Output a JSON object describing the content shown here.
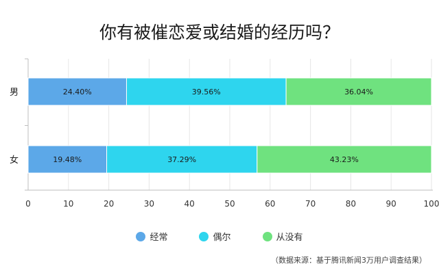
{
  "title": "你有被催恋爱或结婚的经历吗？",
  "source_note": "（数据来源：基于腾讯新闻3万用户调查结果）",
  "colors": {
    "frequent": "#5ca8e8",
    "occasional": "#2ed5ee",
    "never": "#6fe27f"
  },
  "chart_data": {
    "type": "bar",
    "orientation": "horizontal",
    "stacked": true,
    "categories": [
      "男",
      "女"
    ],
    "series": [
      {
        "name": "经常",
        "values": [
          24.4,
          19.48
        ],
        "labels": [
          "24.40%",
          "19.48%"
        ]
      },
      {
        "name": "偶尔",
        "values": [
          39.56,
          37.29
        ],
        "labels": [
          "39.56%",
          "37.29%"
        ]
      },
      {
        "name": "从没有",
        "values": [
          36.04,
          43.23
        ],
        "labels": [
          "36.04%",
          "43.23%"
        ]
      }
    ],
    "xlim": [
      0,
      100
    ],
    "xticks": [
      "0",
      "10",
      "20",
      "30",
      "40",
      "50",
      "60",
      "70",
      "80",
      "90",
      "100"
    ],
    "grid": true,
    "legend_position": "bottom"
  }
}
